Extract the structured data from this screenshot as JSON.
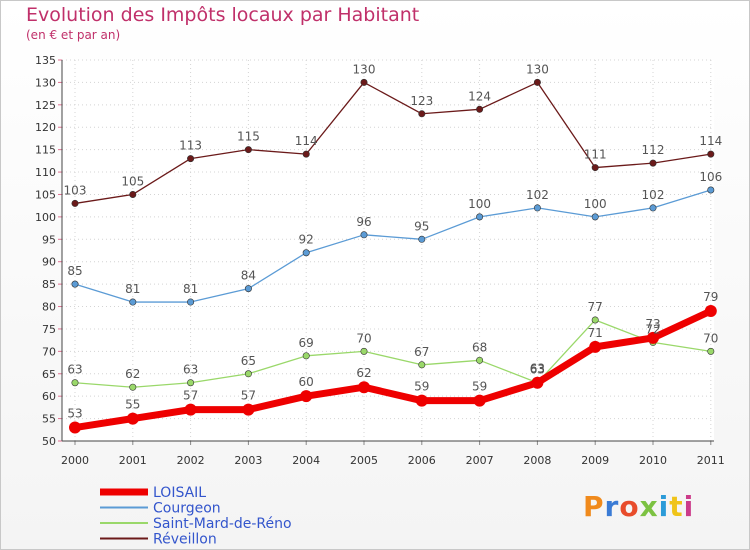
{
  "header": {
    "title": "Evolution des Impôts locaux par Habitant",
    "subtitle": "(en € et par an)"
  },
  "logo": {
    "text": "Proxiti",
    "colors": [
      "#f08a1c",
      "#3a7bd5",
      "#e84c2b",
      "#7cc242",
      "#2b9bd8",
      "#f0c419",
      "#cc3b8a"
    ]
  },
  "chart_data": {
    "type": "line",
    "title": "Evolution des Impôts locaux par Habitant",
    "subtitle": "(en € et par an)",
    "x": [
      "2000",
      "2001",
      "2002",
      "2003",
      "2004",
      "2005",
      "2006",
      "2007",
      "2008",
      "2009",
      "2010",
      "2011"
    ],
    "ylim": [
      50,
      135
    ],
    "yticks": [
      50,
      55,
      60,
      65,
      70,
      75,
      80,
      85,
      90,
      95,
      100,
      105,
      110,
      115,
      120,
      125,
      130,
      135
    ],
    "grid": true,
    "legend": "bottom-left",
    "series": [
      {
        "name": "Réveillon",
        "color": "#6b1a1a",
        "values": [
          103,
          105,
          113,
          115,
          114,
          130,
          123,
          124,
          130,
          111,
          112,
          114
        ]
      },
      {
        "name": "Courgeon",
        "color": "#5b9bd5",
        "values": [
          85,
          81,
          81,
          84,
          92,
          96,
          95,
          100,
          102,
          100,
          102,
          106
        ]
      },
      {
        "name": "Saint-Mard-de-Réno",
        "color": "#9ad86a",
        "values": [
          63,
          62,
          63,
          65,
          69,
          70,
          67,
          68,
          63,
          77,
          72,
          70
        ]
      },
      {
        "name": "LOISAIL",
        "color": "#ee0000",
        "values": [
          53,
          55,
          57,
          57,
          60,
          62,
          59,
          59,
          63,
          71,
          73,
          79
        ]
      }
    ],
    "legend_order": [
      "LOISAIL",
      "Courgeon",
      "Saint-Mard-de-Réno",
      "Réveillon"
    ]
  }
}
